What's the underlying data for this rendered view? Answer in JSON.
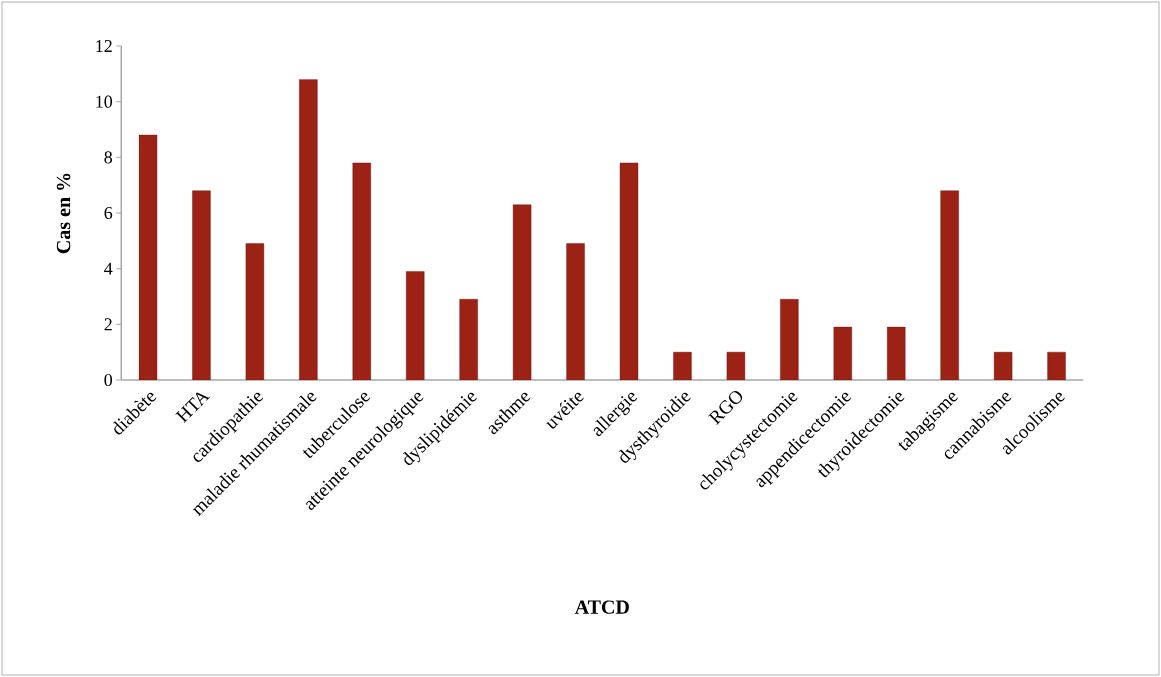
{
  "chart_data": {
    "type": "bar",
    "xlabel": "ATCD",
    "ylabel": "Cas en %",
    "categories": [
      "diabète",
      "HTA",
      "cardiopathie",
      "maladie rhumatismale",
      "tuberculose",
      "atteinte neurologique",
      "dyslipidémie",
      "asthme",
      "uvéite",
      "allergie",
      "dysthyroidie",
      "RGO",
      "cholycystectomie",
      "appendicectomie",
      "thyroidectomie",
      "tabagisme",
      "cannabisme",
      "alcoolisme"
    ],
    "values": [
      8.8,
      6.8,
      4.9,
      10.8,
      7.8,
      3.9,
      2.9,
      6.3,
      4.9,
      7.8,
      1,
      1,
      2.9,
      1.9,
      1.9,
      6.8,
      1,
      1
    ],
    "color": "#9b2214",
    "ylim": [
      0,
      12
    ],
    "yticks": [
      0,
      2,
      4,
      6,
      8,
      10,
      12
    ],
    "grid": false
  }
}
